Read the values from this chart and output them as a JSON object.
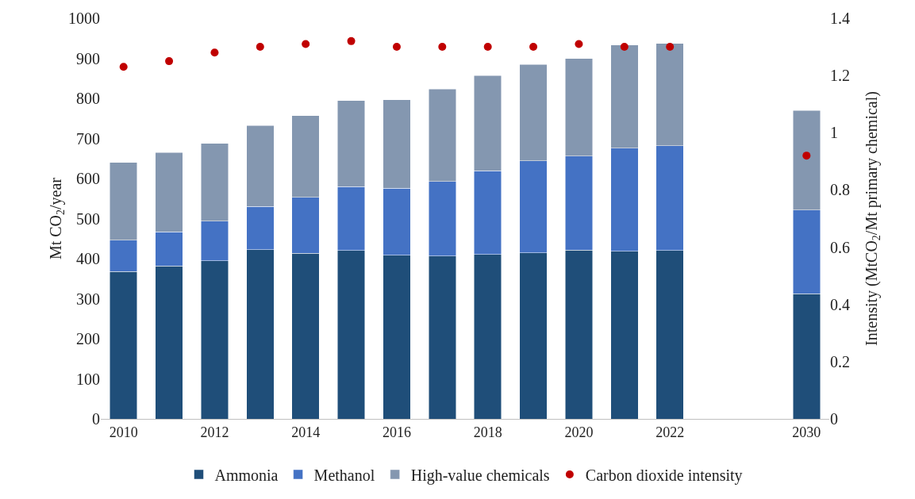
{
  "chart_data": {
    "type": "bar",
    "stacked": true,
    "categories": [
      "2010",
      null,
      "2012",
      null,
      "2014",
      null,
      "2016",
      null,
      "2018",
      null,
      "2020",
      null,
      "2022",
      null,
      null,
      "2030"
    ],
    "series": [
      {
        "name": "Ammonia",
        "color": "#1f4e79",
        "values": [
          368,
          382,
          395,
          422,
          413,
          420,
          408,
          406,
          410,
          414,
          421,
          418,
          420,
          null,
          null,
          312
        ]
      },
      {
        "name": "Methanol",
        "color": "#4472c4",
        "values": [
          78,
          85,
          99,
          108,
          140,
          160,
          168,
          187,
          209,
          230,
          235,
          258,
          262,
          null,
          null,
          209
        ]
      },
      {
        "name": "High-value chemicals",
        "color": "#8497b0",
        "values": [
          194,
          198,
          194,
          202,
          204,
          215,
          221,
          230,
          238,
          241,
          244,
          257,
          255,
          null,
          null,
          249
        ]
      },
      {
        "name": "Carbon dioxide intensity",
        "type": "scatter",
        "axis": "y2",
        "color": "#c00000",
        "marker": "circle",
        "values": [
          1.23,
          1.25,
          1.28,
          1.3,
          1.31,
          1.32,
          1.3,
          1.3,
          1.3,
          1.3,
          1.31,
          1.3,
          1.3,
          null,
          null,
          0.92
        ]
      }
    ],
    "ylabel": "Mt CO$_{2}$/year",
    "y2label": "Intensity (MtCO$_{2}$/Mt primary chemical)",
    "ylim": [
      0,
      1000
    ],
    "yticks": [
      0,
      100,
      200,
      300,
      400,
      500,
      600,
      700,
      800,
      900,
      1000
    ],
    "y2lim": [
      0,
      1.4
    ],
    "y2ticks": [
      0,
      0.2,
      0.4,
      0.6,
      0.8,
      {
        "value": 1,
        "label": "1"
      },
      1.2,
      1.4
    ],
    "grid": false,
    "legend": "bottom"
  }
}
